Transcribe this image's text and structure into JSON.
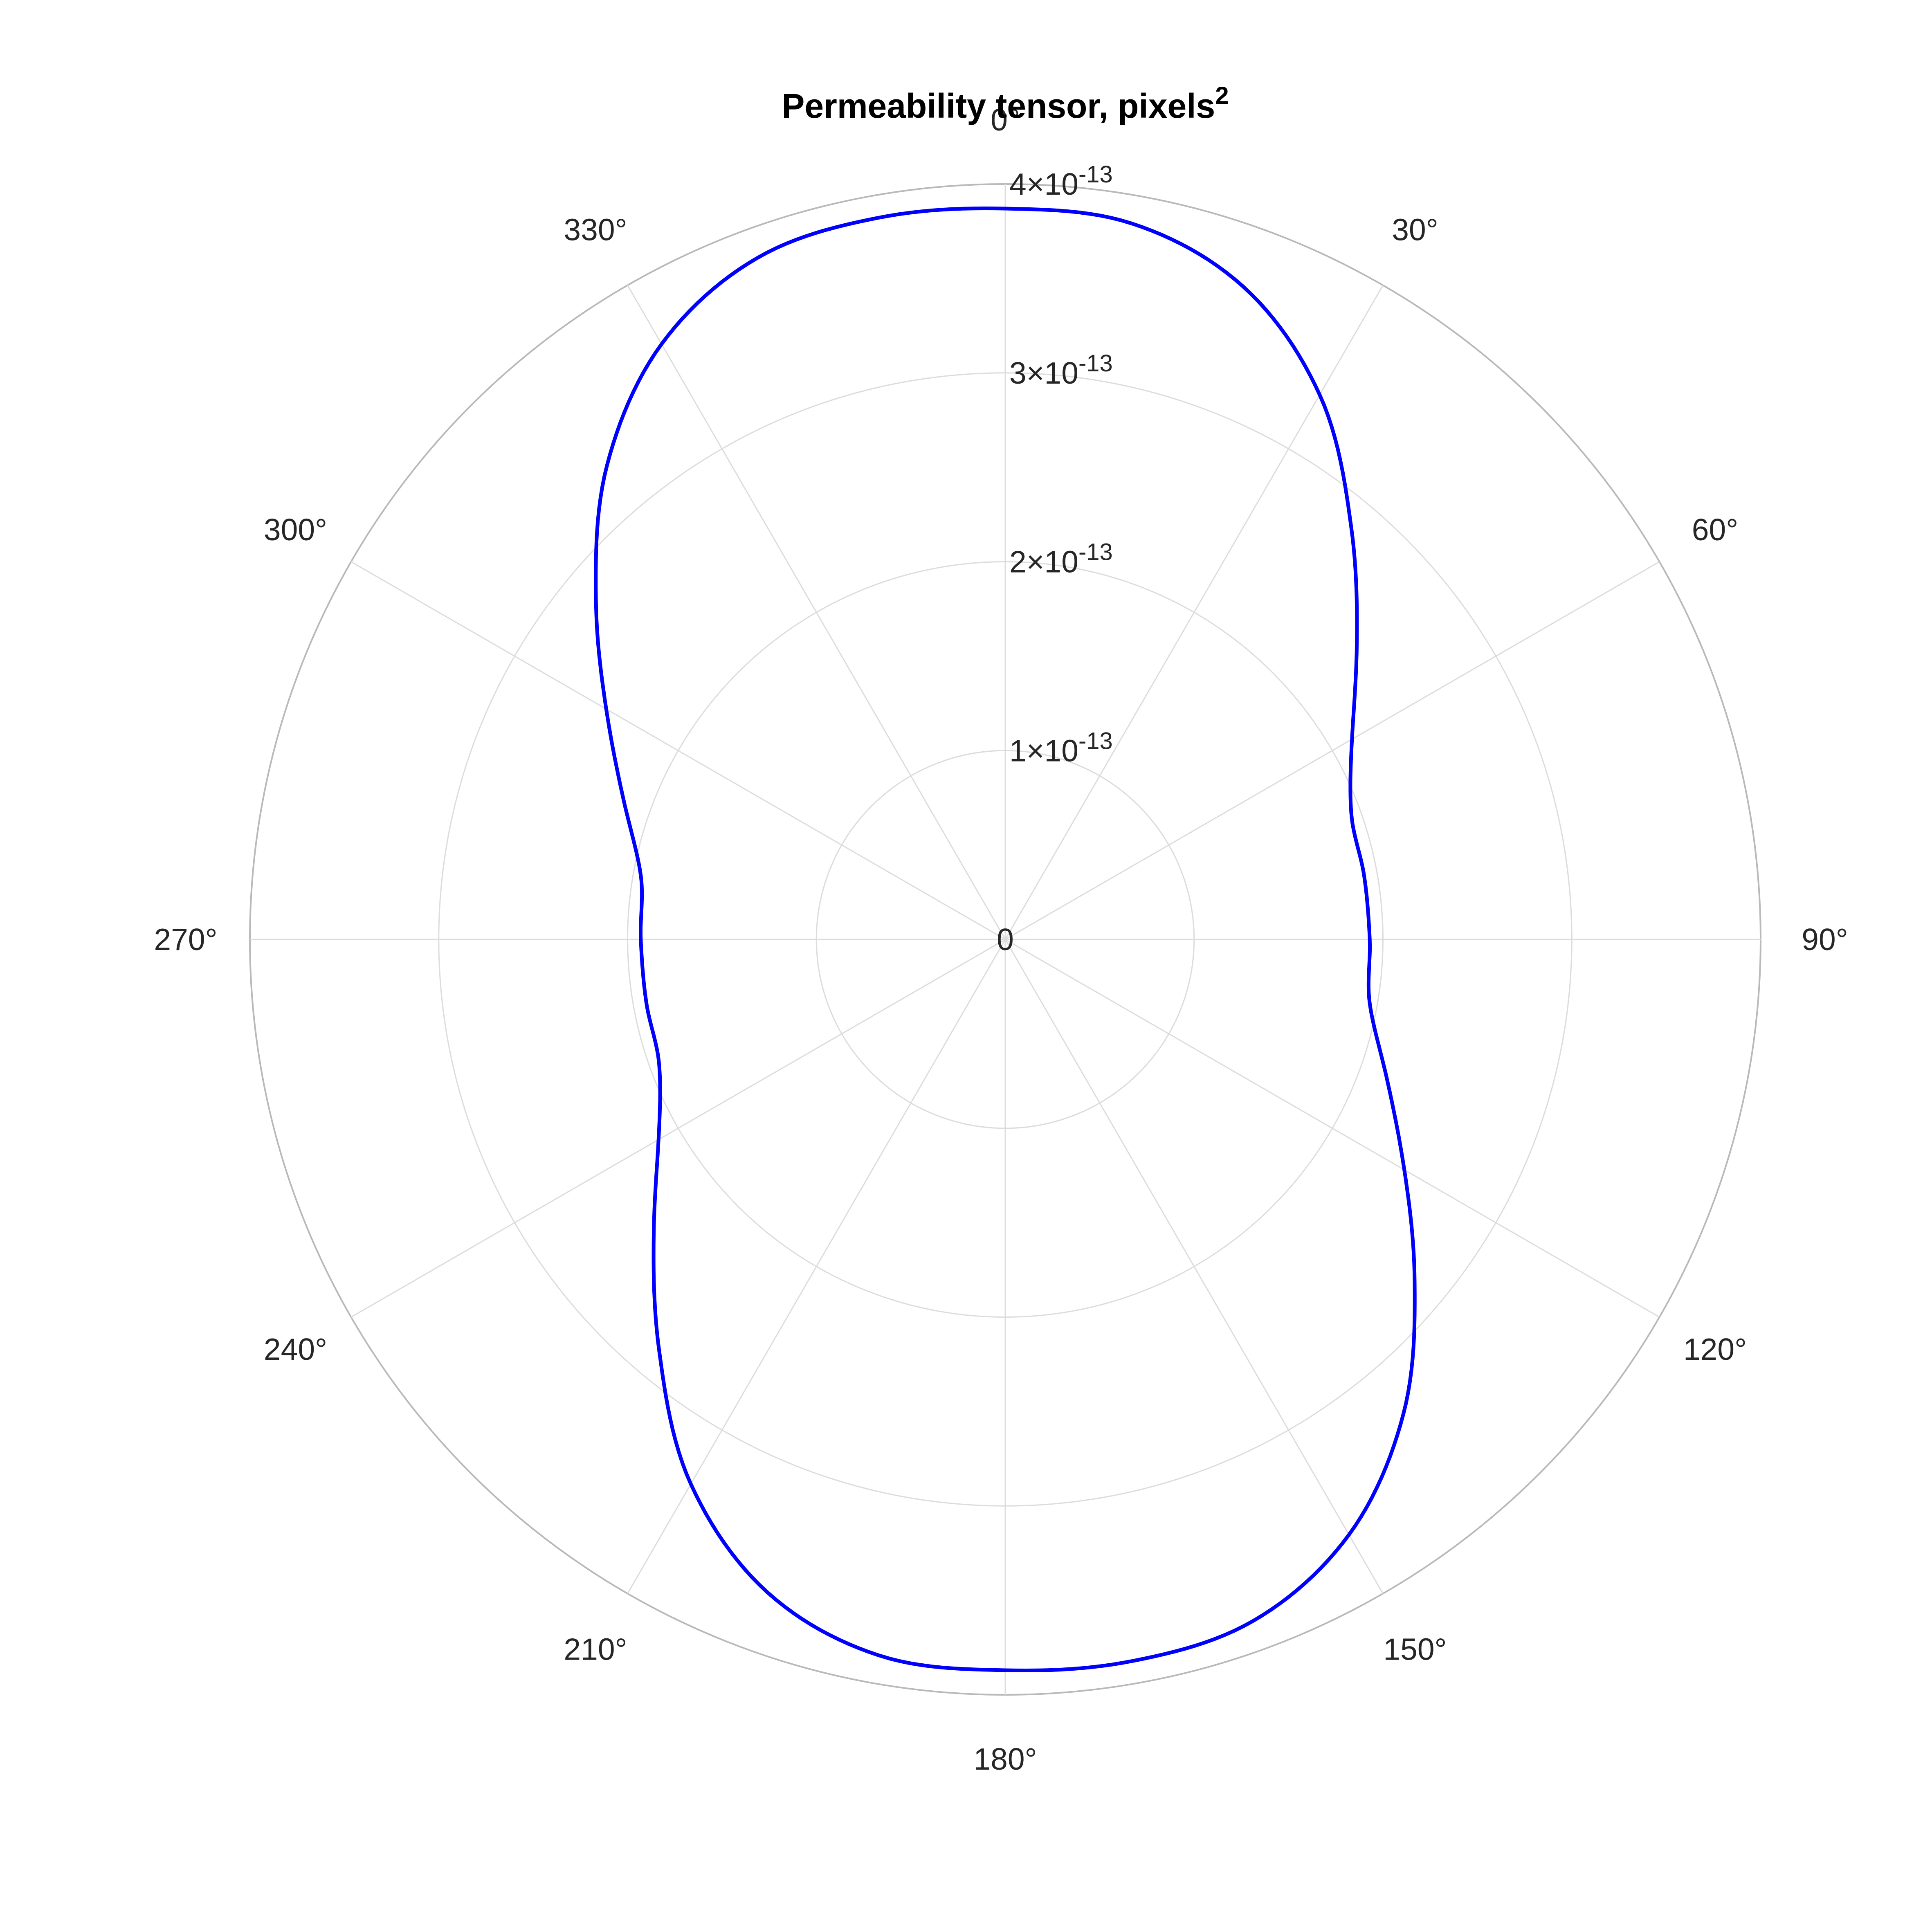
{
  "chart_data": {
    "type": "polar-line",
    "title": "Permeability tensor, pixels",
    "title_superscript": "2",
    "theta_zero_location": "top",
    "theta_direction": "clockwise",
    "theta_ticks": [
      0,
      30,
      60,
      90,
      120,
      150,
      180,
      210,
      240,
      270,
      300,
      330
    ],
    "theta_tick_labels": [
      "0°",
      "30°",
      "60°",
      "90°",
      "120°",
      "150°",
      "180°",
      "210°",
      "240°",
      "270°",
      "300°",
      "330°"
    ],
    "rlim": [
      0,
      4e-13
    ],
    "r_ticks": [
      0,
      1e-13,
      2e-13,
      3e-13,
      4e-13
    ],
    "r_tick_labels": [
      {
        "base": "0",
        "exp": ""
      },
      {
        "base": "1×10",
        "exp": "-13"
      },
      {
        "base": "2×10",
        "exp": "-13"
      },
      {
        "base": "3×10",
        "exp": "-13"
      },
      {
        "base": "4×10",
        "exp": "-13"
      }
    ],
    "grid": true,
    "series": [
      {
        "color": "#0000ff",
        "theta_deg": [
          0,
          10,
          20,
          30,
          40,
          50,
          60,
          70,
          80,
          90,
          100,
          110,
          120,
          130,
          140,
          150,
          160,
          170,
          180,
          190,
          200,
          210,
          220,
          230,
          240,
          250,
          260,
          270,
          280,
          290,
          300,
          310,
          320,
          330,
          340,
          350,
          360
        ],
        "r": [
          3.87e-13,
          3.85e-13,
          3.68e-13,
          3.33e-13,
          2.85e-13,
          2.43e-13,
          2.12e-13,
          1.95e-13,
          1.93e-13,
          1.93e-13,
          1.96e-13,
          2.15e-13,
          2.44e-13,
          2.83e-13,
          3.28e-13,
          3.64e-13,
          3.84e-13,
          3.88e-13,
          3.87e-13,
          3.85e-13,
          3.68e-13,
          3.33e-13,
          2.85e-13,
          2.43e-13,
          2.12e-13,
          1.95e-13,
          1.93e-13,
          1.93e-13,
          1.96e-13,
          2.15e-13,
          2.44e-13,
          2.83e-13,
          3.28e-13,
          3.64e-13,
          3.84e-13,
          3.88e-13,
          3.87e-13
        ]
      }
    ]
  }
}
